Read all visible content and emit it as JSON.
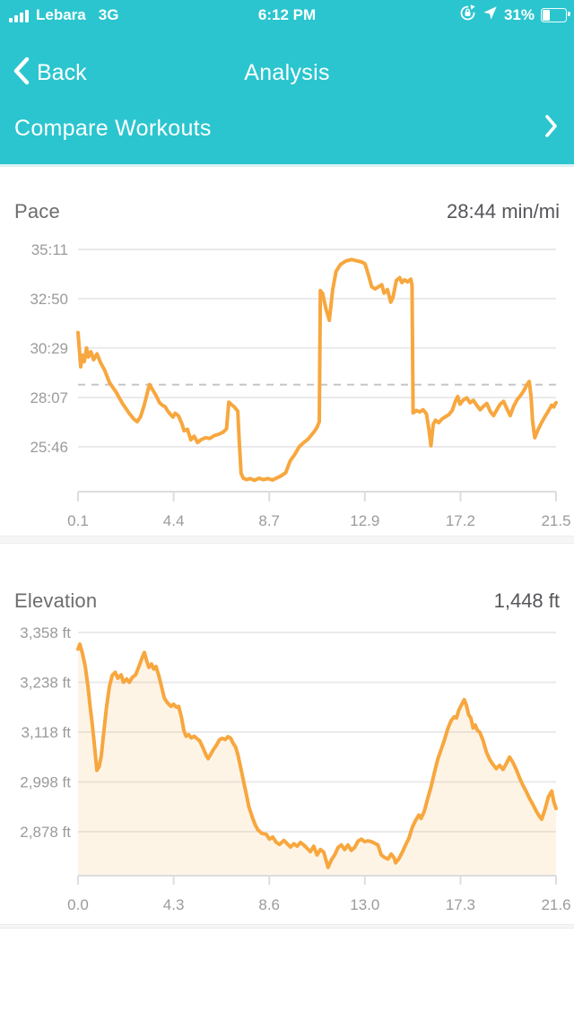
{
  "status_bar": {
    "carrier": "Lebara",
    "network": "3G",
    "time": "6:12 PM",
    "battery_percent": "31%"
  },
  "nav": {
    "back_label": "Back",
    "title": "Analysis"
  },
  "compare": {
    "label": "Compare Workouts"
  },
  "pace_section": {
    "label": "Pace",
    "value": "28:44 min/mi"
  },
  "elevation_section": {
    "label": "Elevation",
    "value": "1,448 ft"
  },
  "colors": {
    "teal": "#2BC5CF",
    "line_orange": "#F7A73E",
    "area_fill": "rgba(247,167,62,0.13)",
    "gridline": "#EAEAEC",
    "axis": "#DDDDDF",
    "average_dash": "#C6C6C8",
    "tick_text": "#9B9B9B",
    "section_label": "#6D6D70",
    "section_value": "#55565A"
  },
  "chart_data": [
    {
      "id": "pace",
      "type": "line",
      "title": "Pace",
      "unit": "min/mi",
      "summary_value": "28:44 min/mi",
      "grid": true,
      "legend": "none",
      "y_ticks": [
        {
          "label": "35:11",
          "value": 2111
        },
        {
          "label": "32:50",
          "value": 1970
        },
        {
          "label": "30:29",
          "value": 1829
        },
        {
          "label": "28:07",
          "value": 1687
        },
        {
          "label": "25:46",
          "value": 1546
        }
      ],
      "x_ticks": [
        "0.1",
        "4.4",
        "8.7",
        "12.9",
        "17.2",
        "21.5"
      ],
      "xlim": [
        0.1,
        21.5
      ],
      "average": {
        "label": "28:44",
        "value": 1724
      },
      "points": [
        [
          0.1,
          1873
        ],
        [
          0.22,
          1775
        ],
        [
          0.3,
          1808
        ],
        [
          0.38,
          1790
        ],
        [
          0.48,
          1829
        ],
        [
          0.56,
          1803
        ],
        [
          0.68,
          1818
        ],
        [
          0.8,
          1795
        ],
        [
          0.95,
          1812
        ],
        [
          1.1,
          1788
        ],
        [
          1.3,
          1764
        ],
        [
          1.5,
          1731
        ],
        [
          1.8,
          1703
        ],
        [
          2.1,
          1669
        ],
        [
          2.4,
          1641
        ],
        [
          2.6,
          1625
        ],
        [
          2.75,
          1618
        ],
        [
          2.9,
          1632
        ],
        [
          3.05,
          1662
        ],
        [
          3.2,
          1700
        ],
        [
          3.3,
          1724
        ],
        [
          3.45,
          1708
        ],
        [
          3.6,
          1692
        ],
        [
          3.75,
          1672
        ],
        [
          3.9,
          1664
        ],
        [
          4.0,
          1661
        ],
        [
          4.1,
          1650
        ],
        [
          4.25,
          1638
        ],
        [
          4.35,
          1631
        ],
        [
          4.45,
          1642
        ],
        [
          4.6,
          1634
        ],
        [
          4.75,
          1612
        ],
        [
          4.85,
          1592
        ],
        [
          5.0,
          1596
        ],
        [
          5.15,
          1566
        ],
        [
          5.3,
          1576
        ],
        [
          5.45,
          1558
        ],
        [
          5.6,
          1566
        ],
        [
          5.8,
          1572
        ],
        [
          6.0,
          1570
        ],
        [
          6.2,
          1578
        ],
        [
          6.4,
          1582
        ],
        [
          6.6,
          1588
        ],
        [
          6.75,
          1598
        ],
        [
          6.85,
          1674
        ],
        [
          6.95,
          1668
        ],
        [
          7.1,
          1660
        ],
        [
          7.25,
          1648
        ],
        [
          7.32,
          1560
        ],
        [
          7.4,
          1470
        ],
        [
          7.5,
          1456
        ],
        [
          7.65,
          1452
        ],
        [
          7.8,
          1455
        ],
        [
          8.0,
          1450
        ],
        [
          8.2,
          1456
        ],
        [
          8.4,
          1452
        ],
        [
          8.6,
          1455
        ],
        [
          8.8,
          1451
        ],
        [
          9.0,
          1457
        ],
        [
          9.2,
          1463
        ],
        [
          9.4,
          1472
        ],
        [
          9.6,
          1506
        ],
        [
          9.8,
          1524
        ],
        [
          10.0,
          1546
        ],
        [
          10.2,
          1558
        ],
        [
          10.4,
          1568
        ],
        [
          10.55,
          1580
        ],
        [
          10.7,
          1592
        ],
        [
          10.8,
          1602
        ],
        [
          10.9,
          1618
        ],
        [
          10.95,
          1993
        ],
        [
          11.05,
          1985
        ],
        [
          11.2,
          1940
        ],
        [
          11.35,
          1908
        ],
        [
          11.5,
          1995
        ],
        [
          11.65,
          2048
        ],
        [
          11.85,
          2068
        ],
        [
          12.1,
          2078
        ],
        [
          12.35,
          2082
        ],
        [
          12.6,
          2078
        ],
        [
          12.8,
          2075
        ],
        [
          12.95,
          2070
        ],
        [
          13.1,
          2038
        ],
        [
          13.25,
          2004
        ],
        [
          13.4,
          1998
        ],
        [
          13.55,
          2004
        ],
        [
          13.7,
          2010
        ],
        [
          13.8,
          1986
        ],
        [
          13.95,
          1996
        ],
        [
          14.1,
          1960
        ],
        [
          14.2,
          1974
        ],
        [
          14.35,
          2022
        ],
        [
          14.5,
          2030
        ],
        [
          14.6,
          2016
        ],
        [
          14.72,
          2024
        ],
        [
          14.85,
          2018
        ],
        [
          15.0,
          2026
        ],
        [
          15.05,
          2008
        ],
        [
          15.1,
          1643
        ],
        [
          15.25,
          1650
        ],
        [
          15.4,
          1646
        ],
        [
          15.55,
          1652
        ],
        [
          15.7,
          1640
        ],
        [
          15.8,
          1600
        ],
        [
          15.9,
          1549
        ],
        [
          16.0,
          1610
        ],
        [
          16.1,
          1622
        ],
        [
          16.25,
          1615
        ],
        [
          16.4,
          1626
        ],
        [
          16.55,
          1632
        ],
        [
          16.7,
          1638
        ],
        [
          16.85,
          1650
        ],
        [
          17.0,
          1677
        ],
        [
          17.1,
          1690
        ],
        [
          17.2,
          1668
        ],
        [
          17.35,
          1680
        ],
        [
          17.5,
          1686
        ],
        [
          17.65,
          1672
        ],
        [
          17.8,
          1679
        ],
        [
          17.95,
          1665
        ],
        [
          18.1,
          1652
        ],
        [
          18.25,
          1662
        ],
        [
          18.4,
          1670
        ],
        [
          18.55,
          1648
        ],
        [
          18.7,
          1635
        ],
        [
          18.85,
          1652
        ],
        [
          19.0,
          1668
        ],
        [
          19.15,
          1676
        ],
        [
          19.3,
          1655
        ],
        [
          19.45,
          1635
        ],
        [
          19.6,
          1662
        ],
        [
          19.75,
          1680
        ],
        [
          19.9,
          1692
        ],
        [
          20.05,
          1706
        ],
        [
          20.2,
          1724
        ],
        [
          20.3,
          1733
        ],
        [
          20.38,
          1690
        ],
        [
          20.45,
          1620
        ],
        [
          20.55,
          1572
        ],
        [
          20.7,
          1596
        ],
        [
          20.85,
          1615
        ],
        [
          21.0,
          1632
        ],
        [
          21.15,
          1648
        ],
        [
          21.3,
          1665
        ],
        [
          21.4,
          1660
        ],
        [
          21.45,
          1668
        ],
        [
          21.5,
          1672
        ]
      ]
    },
    {
      "id": "elevation",
      "type": "area",
      "title": "Elevation",
      "unit": "ft",
      "summary_value": "1,448 ft",
      "grid": true,
      "legend": "none",
      "y_ticks": [
        {
          "label": "3,358 ft",
          "value": 3358
        },
        {
          "label": "3,238 ft",
          "value": 3238
        },
        {
          "label": "3,118 ft",
          "value": 3118
        },
        {
          "label": "2,998 ft",
          "value": 2998
        },
        {
          "label": "2,878 ft",
          "value": 2878
        }
      ],
      "x_ticks": [
        "0.0",
        "4.3",
        "8.6",
        "13.0",
        "17.3",
        "21.6"
      ],
      "xlim": [
        0.0,
        21.6
      ],
      "points": [
        [
          0.0,
          3318
        ],
        [
          0.08,
          3330
        ],
        [
          0.2,
          3308
        ],
        [
          0.32,
          3278
        ],
        [
          0.45,
          3228
        ],
        [
          0.55,
          3178
        ],
        [
          0.65,
          3135
        ],
        [
          0.75,
          3082
        ],
        [
          0.85,
          3026
        ],
        [
          0.95,
          3034
        ],
        [
          1.05,
          3060
        ],
        [
          1.15,
          3112
        ],
        [
          1.28,
          3175
        ],
        [
          1.42,
          3228
        ],
        [
          1.55,
          3255
        ],
        [
          1.68,
          3262
        ],
        [
          1.8,
          3248
        ],
        [
          1.95,
          3256
        ],
        [
          2.05,
          3238
        ],
        [
          2.2,
          3246
        ],
        [
          2.32,
          3238
        ],
        [
          2.45,
          3250
        ],
        [
          2.6,
          3256
        ],
        [
          2.75,
          3276
        ],
        [
          2.9,
          3298
        ],
        [
          3.0,
          3310
        ],
        [
          3.1,
          3290
        ],
        [
          3.2,
          3274
        ],
        [
          3.32,
          3282
        ],
        [
          3.42,
          3270
        ],
        [
          3.52,
          3276
        ],
        [
          3.65,
          3254
        ],
        [
          3.78,
          3226
        ],
        [
          3.9,
          3200
        ],
        [
          4.05,
          3188
        ],
        [
          4.2,
          3180
        ],
        [
          4.32,
          3185
        ],
        [
          4.45,
          3178
        ],
        [
          4.55,
          3180
        ],
        [
          4.68,
          3152
        ],
        [
          4.78,
          3122
        ],
        [
          4.88,
          3108
        ],
        [
          5.0,
          3112
        ],
        [
          5.12,
          3104
        ],
        [
          5.25,
          3108
        ],
        [
          5.38,
          3102
        ],
        [
          5.5,
          3097
        ],
        [
          5.65,
          3080
        ],
        [
          5.8,
          3061
        ],
        [
          5.88,
          3054
        ],
        [
          6.0,
          3065
        ],
        [
          6.12,
          3076
        ],
        [
          6.25,
          3086
        ],
        [
          6.4,
          3100
        ],
        [
          6.52,
          3103
        ],
        [
          6.65,
          3100
        ],
        [
          6.78,
          3107
        ],
        [
          6.9,
          3103
        ],
        [
          7.0,
          3092
        ],
        [
          7.12,
          3082
        ],
        [
          7.22,
          3064
        ],
        [
          7.35,
          3032
        ],
        [
          7.48,
          2999
        ],
        [
          7.6,
          2970
        ],
        [
          7.72,
          2938
        ],
        [
          7.85,
          2917
        ],
        [
          8.0,
          2895
        ],
        [
          8.12,
          2883
        ],
        [
          8.3,
          2874
        ],
        [
          8.5,
          2872
        ],
        [
          8.65,
          2860
        ],
        [
          8.8,
          2865
        ],
        [
          8.95,
          2853
        ],
        [
          9.1,
          2847
        ],
        [
          9.3,
          2857
        ],
        [
          9.45,
          2849
        ],
        [
          9.6,
          2841
        ],
        [
          9.75,
          2849
        ],
        [
          9.9,
          2843
        ],
        [
          10.05,
          2852
        ],
        [
          10.2,
          2846
        ],
        [
          10.35,
          2838
        ],
        [
          10.5,
          2830
        ],
        [
          10.65,
          2843
        ],
        [
          10.8,
          2822
        ],
        [
          10.95,
          2835
        ],
        [
          11.1,
          2829
        ],
        [
          11.3,
          2792
        ],
        [
          11.45,
          2810
        ],
        [
          11.6,
          2822
        ],
        [
          11.75,
          2840
        ],
        [
          11.9,
          2846
        ],
        [
          12.05,
          2835
        ],
        [
          12.2,
          2846
        ],
        [
          12.35,
          2833
        ],
        [
          12.5,
          2840
        ],
        [
          12.65,
          2855
        ],
        [
          12.8,
          2860
        ],
        [
          12.95,
          2854
        ],
        [
          13.1,
          2856
        ],
        [
          13.25,
          2854
        ],
        [
          13.4,
          2850
        ],
        [
          13.55,
          2846
        ],
        [
          13.7,
          2822
        ],
        [
          13.85,
          2816
        ],
        [
          14.0,
          2812
        ],
        [
          14.15,
          2824
        ],
        [
          14.28,
          2815
        ],
        [
          14.35,
          2803
        ],
        [
          14.5,
          2813
        ],
        [
          14.65,
          2828
        ],
        [
          14.8,
          2846
        ],
        [
          14.95,
          2862
        ],
        [
          15.1,
          2888
        ],
        [
          15.25,
          2905
        ],
        [
          15.4,
          2918
        ],
        [
          15.5,
          2910
        ],
        [
          15.65,
          2928
        ],
        [
          15.8,
          2958
        ],
        [
          15.95,
          2986
        ],
        [
          16.1,
          3020
        ],
        [
          16.25,
          3052
        ],
        [
          16.4,
          3075
        ],
        [
          16.55,
          3098
        ],
        [
          16.7,
          3125
        ],
        [
          16.85,
          3145
        ],
        [
          17.0,
          3155
        ],
        [
          17.1,
          3152
        ],
        [
          17.2,
          3170
        ],
        [
          17.32,
          3183
        ],
        [
          17.45,
          3196
        ],
        [
          17.55,
          3182
        ],
        [
          17.65,
          3160
        ],
        [
          17.75,
          3152
        ],
        [
          17.85,
          3128
        ],
        [
          17.95,
          3135
        ],
        [
          18.05,
          3122
        ],
        [
          18.15,
          3118
        ],
        [
          18.3,
          3098
        ],
        [
          18.45,
          3070
        ],
        [
          18.6,
          3052
        ],
        [
          18.75,
          3040
        ],
        [
          18.9,
          3030
        ],
        [
          19.05,
          3038
        ],
        [
          19.2,
          3028
        ],
        [
          19.35,
          3042
        ],
        [
          19.5,
          3058
        ],
        [
          19.65,
          3045
        ],
        [
          19.8,
          3028
        ],
        [
          19.95,
          3008
        ],
        [
          20.1,
          2990
        ],
        [
          20.25,
          2975
        ],
        [
          20.4,
          2958
        ],
        [
          20.55,
          2944
        ],
        [
          20.7,
          2928
        ],
        [
          20.85,
          2915
        ],
        [
          20.95,
          2908
        ],
        [
          21.1,
          2932
        ],
        [
          21.25,
          2962
        ],
        [
          21.4,
          2976
        ],
        [
          21.5,
          2950
        ],
        [
          21.6,
          2934
        ]
      ]
    }
  ]
}
